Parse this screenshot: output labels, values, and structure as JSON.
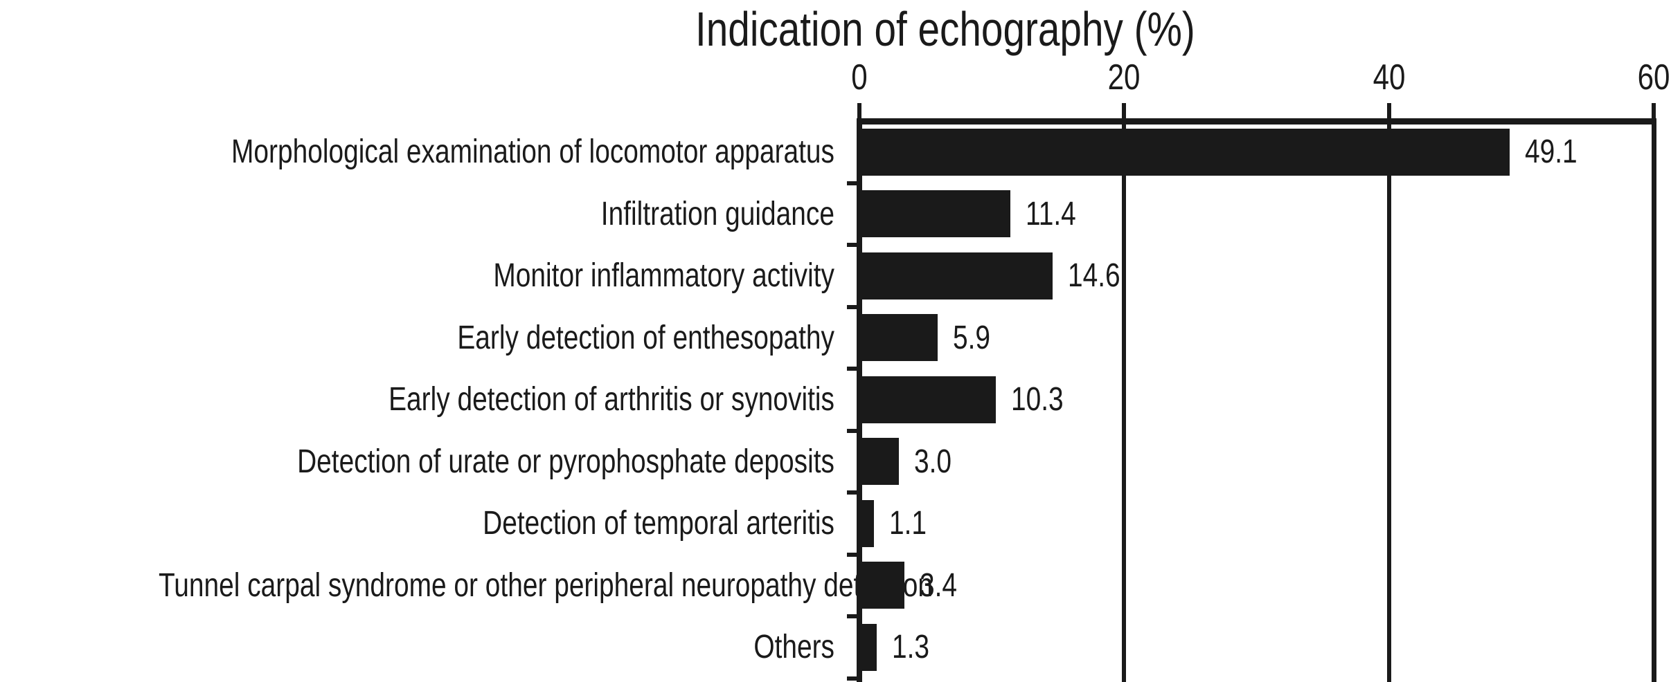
{
  "chart_data": {
    "type": "bar",
    "orientation": "horizontal",
    "title": "Indication of echography (%)",
    "categories": [
      "Morphological examination of locomotor apparatus",
      "Infiltration guidance",
      "Monitor inflammatory activity",
      "Early detection of enthesopathy",
      "Early detection of arthritis or synovitis",
      "Detection of urate or pyrophosphate deposits",
      "Detection of temporal arteritis",
      "Tunnel carpal syndrome or other peripheral neuropathy detection",
      "Others"
    ],
    "values": [
      49.1,
      11.4,
      14.6,
      5.9,
      10.3,
      3.0,
      1.1,
      3.4,
      1.3
    ],
    "value_labels": [
      "49.1",
      "11.4",
      "14.6",
      "5.9",
      "10.3",
      "3.0",
      "1.1",
      "3.4",
      "1.3"
    ],
    "xlabel": "",
    "ylabel": "",
    "xlim": [
      0,
      60
    ],
    "x_ticks": [
      0,
      20,
      40,
      60
    ],
    "x_tick_labels": [
      "0",
      "20",
      "40",
      "60"
    ],
    "grid": true,
    "legend": "none",
    "bar_color": "#1a1a1a",
    "axis_color": "#1a1a1a",
    "text_color": "#1a1a1a",
    "background_color": "#ffffff"
  }
}
